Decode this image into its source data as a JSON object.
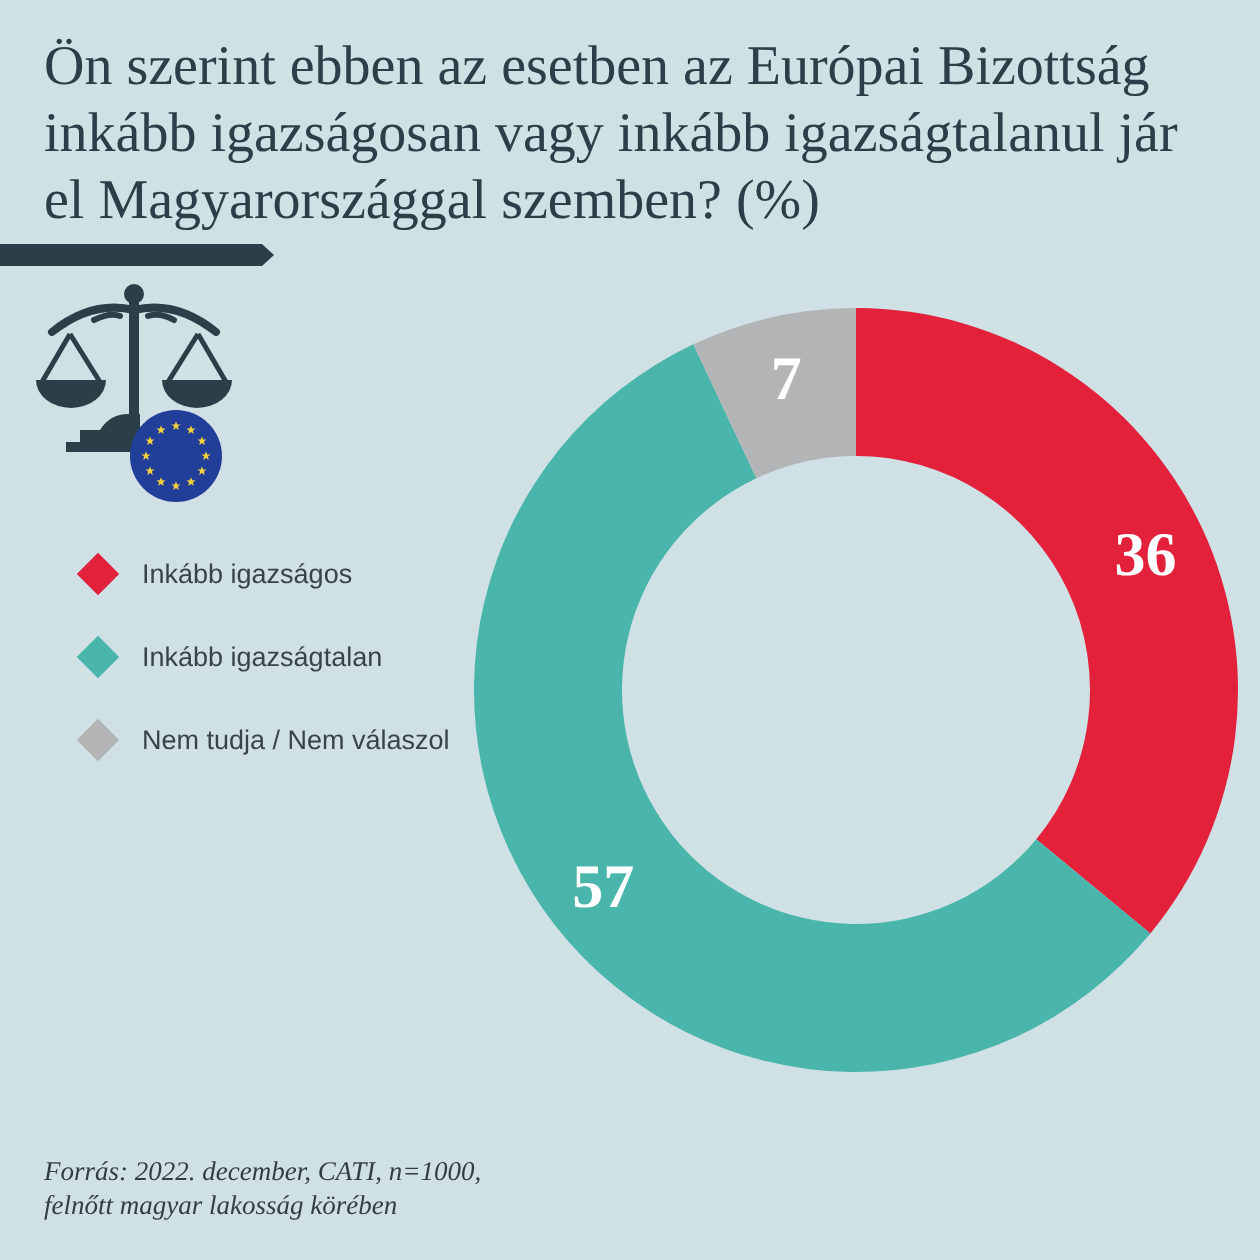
{
  "chart_data": {
    "type": "donut",
    "title": "Ön szerint ebben az esetben az Európai Bizottság inkább igazságosan vagy inkább igazságtalanul jár el Magyarországgal szemben? (%)",
    "categories": [
      "Inkább igazságos",
      "Inkább igazságtalan",
      "Nem tudja / Nem válaszol"
    ],
    "values": [
      36,
      57,
      7
    ],
    "colors": [
      "#e3213a",
      "#4ab5aa",
      "#b3b4b5"
    ],
    "data_labels": true,
    "legend": "left",
    "annotations": [
      "Forrás: 2022. december, CATI, n=1000, felnőtt magyar lakosság körében"
    ]
  }
}
